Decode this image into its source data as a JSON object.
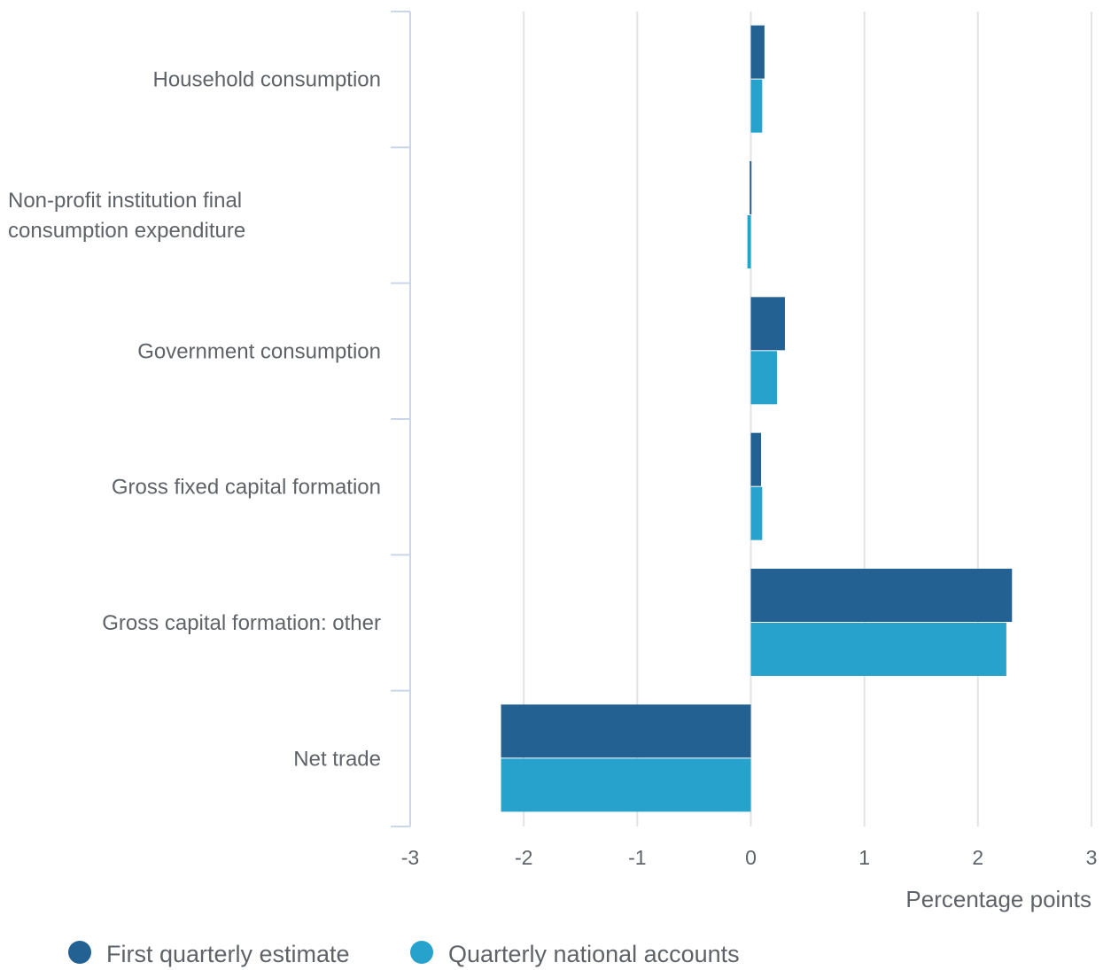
{
  "chart_data": {
    "type": "bar",
    "orientation": "horizontal",
    "categories": [
      [
        "Household consumption"
      ],
      [
        "Non-profit institution final",
        "consumption expenditure"
      ],
      [
        "Government consumption"
      ],
      [
        "Gross fixed capital formation"
      ],
      [
        "Gross capital formation: other"
      ],
      [
        "Net trade"
      ]
    ],
    "series": [
      {
        "name": "First quarterly estimate",
        "color": "#236192",
        "values": [
          0.12,
          -0.01,
          0.3,
          0.09,
          2.3,
          -2.2
        ]
      },
      {
        "name": "Quarterly national accounts",
        "color": "#27a2cc",
        "values": [
          0.1,
          -0.03,
          0.23,
          0.1,
          2.25,
          -2.2
        ]
      }
    ],
    "xlim": [
      -3,
      3
    ],
    "xticks": [
      "-3",
      "-2",
      "-1",
      "0",
      "1",
      "2",
      "3"
    ],
    "xlabel": "Percentage points",
    "ylabel": "",
    "title": "",
    "grid": true,
    "legend_position": "bottom-left"
  }
}
